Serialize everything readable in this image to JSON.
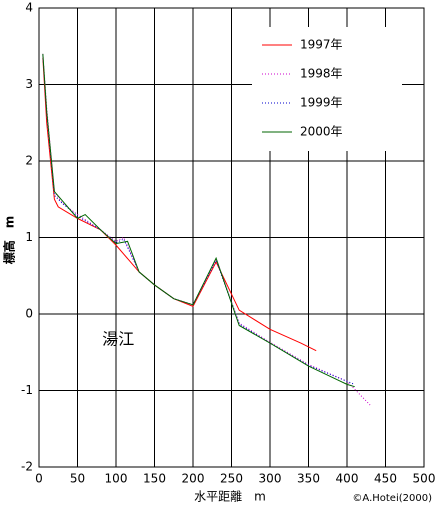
{
  "chart_data": {
    "type": "line",
    "x_label": "水平距離　m",
    "y_label": "標高　m",
    "annotation": "湯江",
    "annotation_color": "#0000cc",
    "credit": "©A.Hotei(2000)",
    "xlim": [
      0,
      500
    ],
    "ylim": [
      -2,
      4
    ],
    "xticks": [
      0,
      50,
      100,
      150,
      200,
      250,
      300,
      350,
      400,
      450,
      500
    ],
    "yticks": [
      -2,
      -1,
      0,
      1,
      2,
      3,
      4
    ],
    "grid": true,
    "legend": "top-right",
    "series": [
      {
        "name": "1997年",
        "color": "#ff0000",
        "linestyle": "solid",
        "x": [
          5,
          10,
          20,
          25,
          50,
          80,
          100,
          130,
          150,
          175,
          200,
          230,
          260,
          300,
          340,
          360
        ],
        "values": [
          3.35,
          2.5,
          1.5,
          1.4,
          1.25,
          1.1,
          0.9,
          0.55,
          0.38,
          0.2,
          0.1,
          0.68,
          0.05,
          -0.2,
          -0.38,
          -0.48
        ]
      },
      {
        "name": "1998年",
        "color": "#cc00cc",
        "linestyle": "dotted",
        "x": [
          5,
          10,
          20,
          30,
          50,
          80,
          100,
          110,
          130,
          150,
          175,
          200,
          230,
          260,
          300,
          350,
          400,
          430
        ],
        "values": [
          3.4,
          2.7,
          1.6,
          1.45,
          1.3,
          1.1,
          0.95,
          1.0,
          0.55,
          0.38,
          0.2,
          0.12,
          0.72,
          -0.12,
          -0.37,
          -0.66,
          -0.88,
          -1.19
        ]
      },
      {
        "name": "1999年",
        "color": "#0000cc",
        "linestyle": "dotted",
        "x": [
          5,
          10,
          20,
          30,
          50,
          80,
          100,
          110,
          130,
          150,
          175,
          200,
          230,
          260,
          300,
          350,
          400,
          410
        ],
        "values": [
          3.38,
          2.6,
          1.55,
          1.45,
          1.28,
          1.1,
          0.93,
          0.98,
          0.55,
          0.38,
          0.2,
          0.12,
          0.7,
          -0.13,
          -0.38,
          -0.67,
          -0.88,
          -0.92
        ]
      },
      {
        "name": "2000年",
        "color": "#006600",
        "linestyle": "solid",
        "x": [
          5,
          10,
          20,
          50,
          60,
          80,
          100,
          115,
          130,
          150,
          175,
          200,
          230,
          260,
          300,
          350,
          400,
          410
        ],
        "values": [
          3.4,
          2.65,
          1.6,
          1.25,
          1.3,
          1.1,
          0.92,
          0.95,
          0.55,
          0.38,
          0.2,
          0.12,
          0.73,
          -0.15,
          -0.38,
          -0.68,
          -0.92,
          -0.95
        ]
      }
    ]
  }
}
